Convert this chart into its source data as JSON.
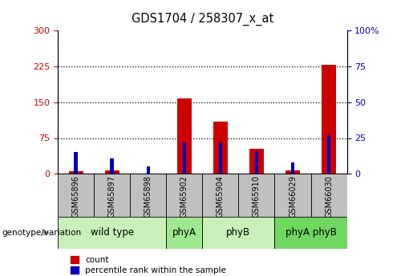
{
  "title": "GDS1704 / 258307_x_at",
  "samples": [
    "GSM65896",
    "GSM65897",
    "GSM65898",
    "GSM65902",
    "GSM65904",
    "GSM65910",
    "GSM66029",
    "GSM66030"
  ],
  "counts": [
    5,
    8,
    0,
    158,
    110,
    52,
    8,
    228
  ],
  "percentile": [
    15,
    11,
    5,
    22,
    22,
    16,
    8,
    27
  ],
  "ylim_left": [
    0,
    300
  ],
  "ylim_right": [
    0,
    100
  ],
  "yticks_left": [
    0,
    75,
    150,
    225,
    300
  ],
  "yticks_right": [
    0,
    25,
    50,
    75,
    100
  ],
  "bar_color_red": "#cc0000",
  "bar_color_blue": "#0000bb",
  "tick_color_left": "#cc0000",
  "tick_color_right": "#0000bb",
  "sample_box_color": "#c0c0c0",
  "group_colors": [
    "#c8f0b8",
    "#a0e890",
    "#c8f0b8",
    "#70d860"
  ],
  "group_labels": [
    "wild type",
    "phyA",
    "phyB",
    "phyA phyB"
  ],
  "group_starts": [
    0,
    3,
    4,
    6
  ],
  "group_ends": [
    3,
    4,
    6,
    8
  ]
}
